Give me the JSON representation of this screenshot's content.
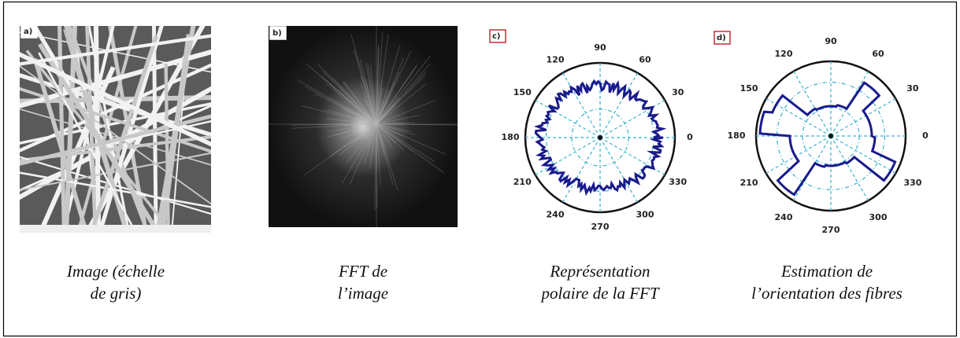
{
  "panels": [
    {
      "label": "a)",
      "caption": [
        "Image (échelle",
        "de gris)"
      ]
    },
    {
      "label": "b)",
      "caption": [
        "FFT de",
        "l’image"
      ]
    },
    {
      "label": "c)",
      "caption": [
        "Représentation",
        "polaire de la FFT"
      ],
      "angle_labels": [
        0,
        30,
        60,
        90,
        120,
        150,
        180,
        210,
        240,
        270,
        300,
        330
      ]
    },
    {
      "label": "d)",
      "caption": [
        "Estimation de",
        "l’orientation des fibres"
      ],
      "angle_labels": [
        0,
        30,
        60,
        90,
        120,
        150,
        180,
        210,
        240,
        270,
        300,
        330
      ]
    }
  ]
}
